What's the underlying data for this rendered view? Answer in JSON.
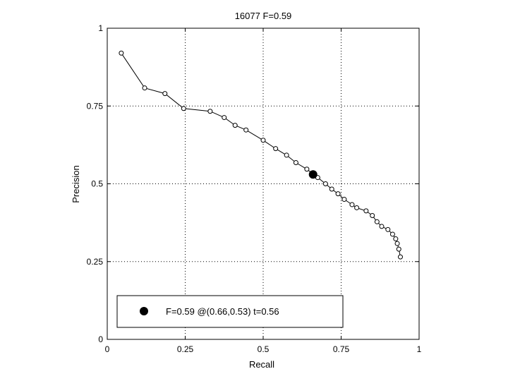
{
  "chart_data": {
    "type": "line",
    "title": "16077 F=0.59",
    "xlabel": "Recall",
    "ylabel": "Precision",
    "xlim": [
      0,
      1
    ],
    "ylim": [
      0,
      1
    ],
    "grid": true,
    "xticks": [
      0,
      0.25,
      0.5,
      0.75,
      1
    ],
    "yticks": [
      0,
      0.25,
      0.5,
      0.75,
      1
    ],
    "xtick_labels": [
      "0",
      "0.25",
      "0.5",
      "0.75",
      "1"
    ],
    "ytick_labels": [
      "0",
      "0.25",
      "0.5",
      "0.75",
      "1"
    ],
    "series": [
      {
        "marker": "open-circle",
        "color": "#000000",
        "points": [
          [
            0.045,
            0.92
          ],
          [
            0.12,
            0.808
          ],
          [
            0.185,
            0.79
          ],
          [
            0.245,
            0.742
          ],
          [
            0.33,
            0.733
          ],
          [
            0.375,
            0.713
          ],
          [
            0.41,
            0.688
          ],
          [
            0.445,
            0.673
          ],
          [
            0.5,
            0.64
          ],
          [
            0.54,
            0.613
          ],
          [
            0.575,
            0.592
          ],
          [
            0.605,
            0.568
          ],
          [
            0.64,
            0.547
          ],
          [
            0.675,
            0.52
          ],
          [
            0.7,
            0.5
          ],
          [
            0.72,
            0.483
          ],
          [
            0.74,
            0.468
          ],
          [
            0.76,
            0.45
          ],
          [
            0.785,
            0.433
          ],
          [
            0.8,
            0.423
          ],
          [
            0.83,
            0.413
          ],
          [
            0.85,
            0.398
          ],
          [
            0.865,
            0.378
          ],
          [
            0.88,
            0.363
          ],
          [
            0.9,
            0.353
          ],
          [
            0.915,
            0.338
          ],
          [
            0.925,
            0.323
          ],
          [
            0.93,
            0.308
          ],
          [
            0.935,
            0.29
          ],
          [
            0.94,
            0.265
          ]
        ]
      }
    ],
    "highlight": {
      "x": 0.66,
      "y": 0.53,
      "marker": "filled-circle",
      "color": "#000000"
    },
    "legend": {
      "placement": "bottom-left",
      "label": "F=0.59 @(0.66,0.53) t=0.56"
    }
  }
}
